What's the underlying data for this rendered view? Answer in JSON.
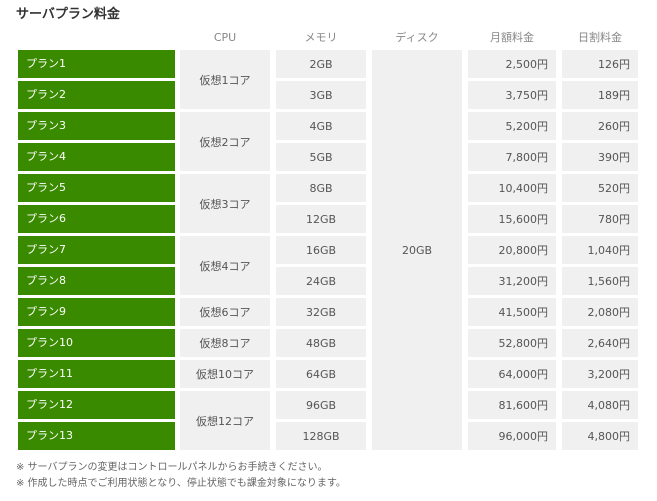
{
  "title": "サーバプラン料金",
  "headers": {
    "cpu": "CPU",
    "memory": "メモリ",
    "disk": "ディスク",
    "monthly": "月額料金",
    "daily": "日割料金"
  },
  "disk_value": "20GB",
  "plans": [
    {
      "name": "プラン1",
      "memory": "2GB",
      "monthly": "2,500円",
      "daily": "126円"
    },
    {
      "name": "プラン2",
      "memory": "3GB",
      "monthly": "3,750円",
      "daily": "189円"
    },
    {
      "name": "プラン3",
      "memory": "4GB",
      "monthly": "5,200円",
      "daily": "260円"
    },
    {
      "name": "プラン4",
      "memory": "5GB",
      "monthly": "7,800円",
      "daily": "390円"
    },
    {
      "name": "プラン5",
      "memory": "8GB",
      "monthly": "10,400円",
      "daily": "520円"
    },
    {
      "name": "プラン6",
      "memory": "12GB",
      "monthly": "15,600円",
      "daily": "780円"
    },
    {
      "name": "プラン7",
      "memory": "16GB",
      "monthly": "20,800円",
      "daily": "1,040円"
    },
    {
      "name": "プラン8",
      "memory": "24GB",
      "monthly": "31,200円",
      "daily": "1,560円"
    },
    {
      "name": "プラン9",
      "memory": "32GB",
      "monthly": "41,500円",
      "daily": "2,080円"
    },
    {
      "name": "プラン10",
      "memory": "48GB",
      "monthly": "52,800円",
      "daily": "2,640円"
    },
    {
      "name": "プラン11",
      "memory": "64GB",
      "monthly": "64,000円",
      "daily": "3,200円"
    },
    {
      "name": "プラン12",
      "memory": "96GB",
      "monthly": "81,600円",
      "daily": "4,080円"
    },
    {
      "name": "プラン13",
      "memory": "128GB",
      "monthly": "96,000円",
      "daily": "4,800円"
    }
  ],
  "cpu_groups": [
    {
      "label": "仮想1コア",
      "rows": 2
    },
    {
      "label": "仮想2コア",
      "rows": 2
    },
    {
      "label": "仮想3コア",
      "rows": 2
    },
    {
      "label": "仮想4コア",
      "rows": 2
    },
    {
      "label": "仮想6コア",
      "rows": 1
    },
    {
      "label": "仮想8コア",
      "rows": 1
    },
    {
      "label": "仮想10コア",
      "rows": 1
    },
    {
      "label": "仮想12コア",
      "rows": 2
    }
  ],
  "notes": [
    "※ サーバプランの変更はコントロールパネルからお手続きください。",
    "※ 作成した時点でご利用状態となり、停止状態でも課金対象になります。"
  ],
  "colors": {
    "plan_bg": "#3a8a00",
    "cell_bg": "#f0f0f0"
  }
}
